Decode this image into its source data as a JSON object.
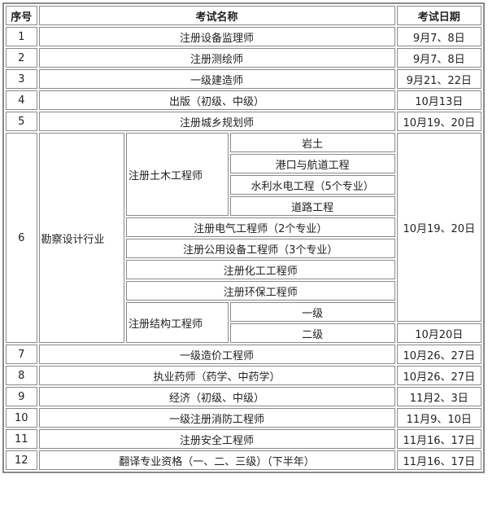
{
  "headers": {
    "seq": "序号",
    "name": "考试名称",
    "date": "考试日期"
  },
  "rows_top": [
    {
      "seq": "1",
      "name": "注册设备监理师",
      "date": "9月7、8日"
    },
    {
      "seq": "2",
      "name": "注册测绘师",
      "date": "9月7、8日"
    },
    {
      "seq": "3",
      "name": "一级建造师",
      "date": "9月21、22日"
    },
    {
      "seq": "4",
      "name": "出版（初级、中级）",
      "date": "10月13日"
    },
    {
      "seq": "5",
      "name": "注册城乡规划师",
      "date": "10月19、20日"
    }
  ],
  "group6": {
    "seq": "6",
    "category": "勘察设计行业",
    "date_main": "10月19、20日",
    "date_last": "10月20日",
    "civil": {
      "name": "注册土木工程师",
      "subs": [
        "岩土",
        "港口与航道工程",
        "水利水电工程（5个专业）",
        "道路工程"
      ]
    },
    "electrical": "注册电气工程师（2个专业）",
    "utility": "注册公用设备工程师（3个专业）",
    "chemical": "注册化工工程师",
    "environmental": "注册环保工程师",
    "structural": {
      "name": "注册结构工程师",
      "subs": [
        "一级",
        "二级"
      ]
    }
  },
  "rows_bottom": [
    {
      "seq": "7",
      "name": "一级造价工程师",
      "date": "10月26、27日"
    },
    {
      "seq": "8",
      "name": "执业药师（药学、中药学）",
      "date": "10月26、27日"
    },
    {
      "seq": "9",
      "name": "经济（初级、中级）",
      "date": "11月2、3日"
    },
    {
      "seq": "10",
      "name": "一级注册消防工程师",
      "date": "11月9、10日"
    },
    {
      "seq": "11",
      "name": "注册安全工程师",
      "date": "11月16、17日"
    },
    {
      "seq": "12",
      "name": "翻译专业资格（一、二、三级）（下半年）",
      "date": "11月16、17日"
    }
  ]
}
